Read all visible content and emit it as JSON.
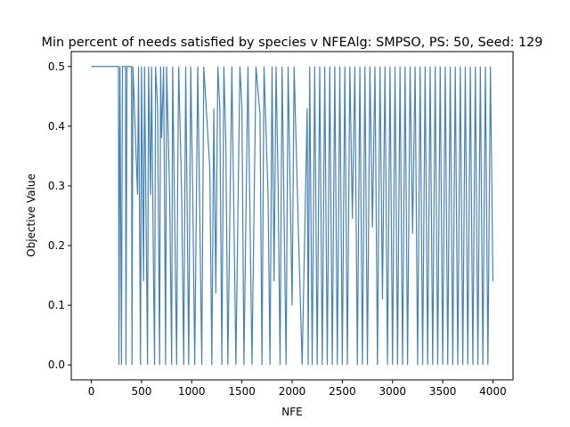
{
  "chart_data": {
    "type": "line",
    "title": "Min percent of needs satisfied by species v NFEAlg: SMPSO, PS: 50, Seed: 129",
    "xlabel": "NFE",
    "ylabel": "Objective Value",
    "color": "#4682b4",
    "xlim": [
      -200,
      4200
    ],
    "ylim": [
      -0.025,
      0.525
    ],
    "xticks": [
      0,
      500,
      1000,
      1500,
      2000,
      2500,
      3000,
      3500,
      4000
    ],
    "yticks": [
      0.0,
      0.1,
      0.2,
      0.3,
      0.4,
      0.5
    ],
    "x": [
      0,
      270,
      275,
      285,
      300,
      310,
      340,
      345,
      355,
      400,
      405,
      415,
      460,
      470,
      490,
      500,
      520,
      530,
      560,
      570,
      590,
      600,
      620,
      630,
      640,
      660,
      680,
      690,
      700,
      720,
      740,
      750,
      780,
      800,
      810,
      850,
      860,
      870,
      900,
      920,
      940,
      970,
      990,
      1010,
      1030,
      1060,
      1100,
      1120,
      1180,
      1200,
      1220,
      1240,
      1260,
      1280,
      1300,
      1320,
      1340,
      1360,
      1400,
      1440,
      1480,
      1500,
      1520,
      1560,
      1600,
      1640,
      1680,
      1700,
      1720,
      1760,
      1780,
      1800,
      1820,
      1840,
      1860,
      1880,
      1900,
      1940,
      1960,
      2000,
      2020,
      2060,
      2100,
      2150,
      2160,
      2175,
      2200,
      2225,
      2250,
      2275,
      2300,
      2325,
      2350,
      2375,
      2400,
      2425,
      2450,
      2475,
      2500,
      2525,
      2550,
      2575,
      2600,
      2625,
      2650,
      2675,
      2700,
      2725,
      2750,
      2775,
      2800,
      2825,
      2850,
      2875,
      2900,
      2925,
      2950,
      2975,
      3000,
      3025,
      3050,
      3075,
      3100,
      3125,
      3150,
      3175,
      3200,
      3225,
      3250,
      3275,
      3300,
      3325,
      3350,
      3375,
      3400,
      3425,
      3450,
      3475,
      3500,
      3525,
      3550,
      3575,
      3600,
      3625,
      3650,
      3675,
      3700,
      3725,
      3750,
      3775,
      3800,
      3825,
      3850,
      3875,
      3900,
      3925,
      3950,
      3975,
      4000
    ],
    "values": [
      0.5,
      0.5,
      0,
      0.5,
      0,
      0.5,
      0.5,
      0,
      0.5,
      0.5,
      0,
      0.5,
      0.285,
      0.5,
      0,
      0.5,
      0.14,
      0.5,
      0,
      0.5,
      0.285,
      0.5,
      0.14,
      0,
      0.5,
      0.43,
      0,
      0.5,
      0.38,
      0.5,
      0,
      0.5,
      0.285,
      0,
      0.5,
      0,
      0.31,
      0.5,
      0.285,
      0,
      0.5,
      0,
      0.5,
      0.285,
      0,
      0.5,
      0,
      0.5,
      0.33,
      0,
      0.43,
      0.12,
      0.5,
      0.43,
      0,
      0.5,
      0.37,
      0,
      0.5,
      0,
      0.5,
      0.43,
      0,
      0.5,
      0,
      0.5,
      0.42,
      0,
      0.5,
      0.285,
      0,
      0.5,
      0.14,
      0.5,
      0.31,
      0,
      0.5,
      0,
      0.5,
      0.1,
      0.5,
      0.24,
      0,
      0.43,
      0,
      0.5,
      0,
      0.5,
      0,
      0.5,
      0,
      0.5,
      0,
      0.5,
      0,
      0.5,
      0,
      0.5,
      0,
      0.5,
      0,
      0.5,
      0.245,
      0.5,
      0,
      0.5,
      0,
      0.5,
      0,
      0.5,
      0.23,
      0.5,
      0,
      0.5,
      0.11,
      0.5,
      0,
      0.5,
      0,
      0.5,
      0,
      0.5,
      0,
      0.5,
      0,
      0.5,
      0.22,
      0.5,
      0,
      0.5,
      0,
      0.5,
      0,
      0.5,
      0,
      0.5,
      0,
      0.5,
      0,
      0.5,
      0,
      0.5,
      0,
      0.5,
      0,
      0.5,
      0,
      0.5,
      0,
      0.5,
      0,
      0.5,
      0,
      0.5,
      0,
      0.5,
      0,
      0.5,
      0.14
    ]
  }
}
